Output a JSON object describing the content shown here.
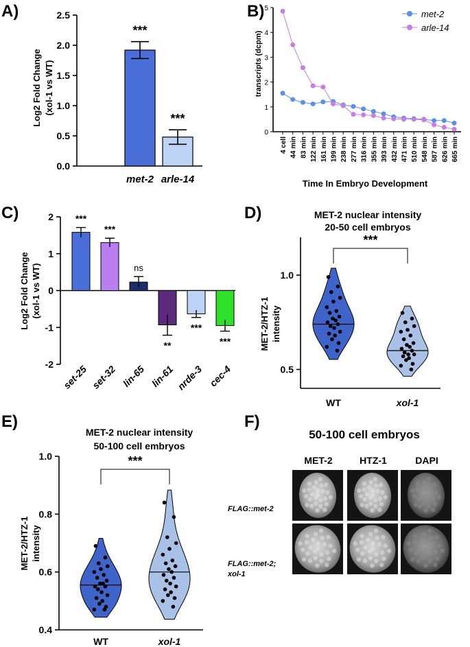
{
  "panel_labels": {
    "a": "A)",
    "b": "B)",
    "c": "C)",
    "d": "D)",
    "e": "E)",
    "f": "F)"
  },
  "chart_data": [
    {
      "id": "A",
      "type": "bar",
      "title": "",
      "ylabel": "Log2 Fold Change",
      "ylabel_line2": "(xol-1 vs WT)",
      "ylim": [
        0,
        2.5
      ],
      "yticks": [
        "0.0",
        "0.5",
        "1.0",
        "1.5",
        "2.0",
        "2.5"
      ],
      "categories": [
        "met-2",
        "arle-14"
      ],
      "values": [
        1.92,
        0.48
      ],
      "errors": [
        0.14,
        0.12
      ],
      "significance": [
        "***",
        "***"
      ],
      "colors": [
        "#4a6fd9",
        "#bcd3f5"
      ]
    },
    {
      "id": "B",
      "type": "line",
      "ylabel": "transcripts (dcpm)",
      "xlabel": "Time In Embryo Development",
      "ylim": [
        0,
        5
      ],
      "yticks": [
        "0",
        "1",
        "2",
        "3",
        "4",
        "5"
      ],
      "x": [
        "4 cell",
        "44 min",
        "83 min",
        "122 min",
        "161 min",
        "199 min",
        "238 min",
        "277 min",
        "316 min",
        "355 min",
        "393 min",
        "432 min",
        "471 min",
        "510 min",
        "548 min",
        "587 min",
        "626 min",
        "665 min"
      ],
      "series": [
        {
          "name": "met-2",
          "color": "#5b8ee8",
          "values": [
            1.55,
            1.3,
            1.18,
            1.12,
            1.2,
            1.22,
            1.08,
            1.02,
            0.92,
            0.82,
            0.72,
            0.6,
            0.55,
            0.53,
            0.5,
            0.45,
            0.45,
            0.35
          ]
        },
        {
          "name": "arle-14",
          "color": "#c77de3",
          "values": [
            4.85,
            3.5,
            2.58,
            1.85,
            1.8,
            1.12,
            1.05,
            0.7,
            0.68,
            0.65,
            0.55,
            0.52,
            0.5,
            0.5,
            0.48,
            0.28,
            0.18,
            0.1
          ]
        }
      ],
      "legend": "top-right"
    },
    {
      "id": "C",
      "type": "bar",
      "ylabel": "Log2 Fold Change",
      "ylabel_line2": "(xol-1 vs WT)",
      "ylim": [
        -2,
        2
      ],
      "yticks": [
        "-2",
        "-1",
        "0",
        "1",
        "2"
      ],
      "categories": [
        "set-25",
        "set-32",
        "lin-65",
        "lin-61",
        "nrde-3",
        "cec-4"
      ],
      "values": [
        1.58,
        1.3,
        0.23,
        -0.93,
        -0.63,
        -0.95
      ],
      "errors": [
        0.13,
        0.12,
        0.15,
        0.28,
        0.1,
        0.15
      ],
      "significance": [
        "***",
        "***",
        "ns",
        "**",
        "***",
        "***"
      ],
      "colors": [
        "#4a6fd9",
        "#b97ef0",
        "#1b2c6b",
        "#5b2a7d",
        "#bcd3f5",
        "#2fe02a"
      ]
    },
    {
      "id": "D",
      "type": "violin",
      "title": "MET-2 nuclear intensity",
      "subtitle": "20-50 cell embryos",
      "ylabel": "MET-2/HTZ-1",
      "ylabel_line2": "intensity",
      "ylim": [
        0.4,
        1.2
      ],
      "yticks": [
        "0.5",
        "1.0"
      ],
      "categories": [
        "WT",
        "xol-1"
      ],
      "medians": [
        0.74,
        0.6
      ],
      "points": [
        [
          0.99,
          0.94,
          0.91,
          0.88,
          0.86,
          0.83,
          0.81,
          0.8,
          0.78,
          0.77,
          0.76,
          0.75,
          0.74,
          0.73,
          0.72,
          0.7,
          0.69,
          0.68,
          0.66,
          0.64,
          0.62,
          0.6
        ],
        [
          0.8,
          0.77,
          0.75,
          0.73,
          0.71,
          0.7,
          0.68,
          0.66,
          0.64,
          0.63,
          0.62,
          0.61,
          0.6,
          0.59,
          0.58,
          0.58,
          0.57,
          0.56,
          0.55,
          0.53,
          0.52,
          0.5
        ]
      ],
      "significance": "***",
      "colors": [
        "#3e64c9",
        "#a9c1e6"
      ]
    },
    {
      "id": "E",
      "type": "violin",
      "title": "MET-2 nuclear intensity",
      "subtitle": "50-100 cell embryos",
      "ylabel": "MET-2/HTZ-1",
      "ylabel_line2": "intensity",
      "ylim": [
        0.4,
        1.0
      ],
      "yticks": [
        "0.4",
        "0.6",
        "0.8",
        "1.0"
      ],
      "categories": [
        "WT",
        "xol-1"
      ],
      "medians": [
        0.555,
        0.6
      ],
      "points": [
        [
          0.69,
          0.65,
          0.63,
          0.62,
          0.61,
          0.6,
          0.59,
          0.58,
          0.57,
          0.56,
          0.56,
          0.55,
          0.55,
          0.54,
          0.53,
          0.52,
          0.51,
          0.5,
          0.49,
          0.48,
          0.47,
          0.47
        ],
        [
          0.84,
          0.79,
          0.72,
          0.7,
          0.68,
          0.66,
          0.64,
          0.63,
          0.62,
          0.61,
          0.6,
          0.59,
          0.58,
          0.57,
          0.56,
          0.55,
          0.54,
          0.53,
          0.52,
          0.51,
          0.5,
          0.48
        ]
      ],
      "significance": "***",
      "colors": [
        "#3e64c9",
        "#a9c1e6"
      ]
    }
  ],
  "micrograph_panel": {
    "title": "50-100 cell embryos",
    "columns": [
      "MET-2",
      "HTZ-1",
      "DAPI"
    ],
    "rows": [
      {
        "label_line1": "FLAG::met-2",
        "label_line2": ""
      },
      {
        "label_line1": "FLAG::met-2;",
        "label_line2": "xol-1"
      }
    ]
  }
}
